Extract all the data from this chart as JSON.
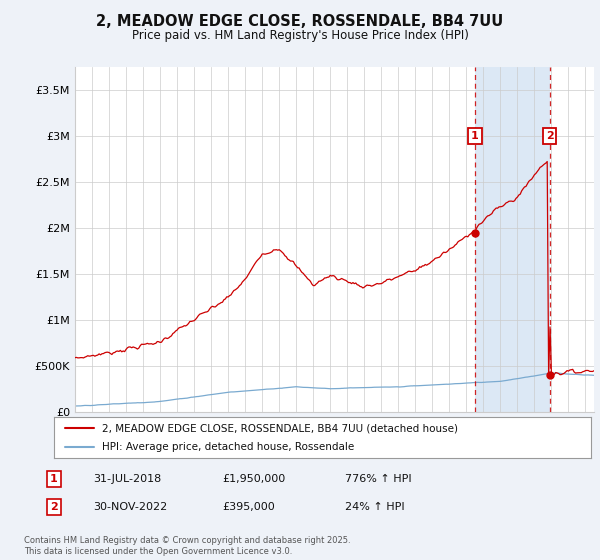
{
  "title": "2, MEADOW EDGE CLOSE, ROSSENDALE, BB4 7UU",
  "subtitle": "Price paid vs. HM Land Registry's House Price Index (HPI)",
  "bg_color": "#eef2f8",
  "plot_bg_color": "#ffffff",
  "highlight_bg_color": "#dce8f5",
  "red_line_color": "#cc0000",
  "blue_line_color": "#7aaad0",
  "grid_color": "#cccccc",
  "legend_line1": "2, MEADOW EDGE CLOSE, ROSSENDALE, BB4 7UU (detached house)",
  "legend_line2": "HPI: Average price, detached house, Rossendale",
  "footer": "Contains HM Land Registry data © Crown copyright and database right 2025.\nThis data is licensed under the Open Government Licence v3.0.",
  "ylim": [
    0,
    3750000
  ],
  "yticks": [
    0,
    500000,
    1000000,
    1500000,
    2000000,
    2500000,
    3000000,
    3500000
  ],
  "ytick_labels": [
    "£0",
    "£500K",
    "£1M",
    "£1.5M",
    "£2M",
    "£2.5M",
    "£3M",
    "£3.5M"
  ],
  "year_start": 1995,
  "year_end": 2025,
  "event1_year": 2018.5,
  "event2_year": 2022.9,
  "event1_value": 1950000,
  "event2_value": 395000
}
